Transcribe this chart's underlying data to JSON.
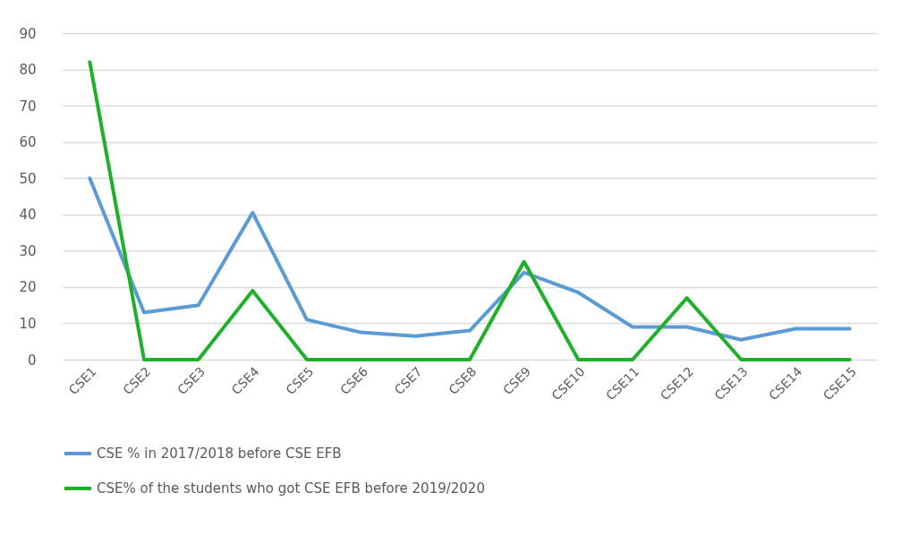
{
  "chart_data": {
    "type": "line",
    "categories": [
      "CSE1",
      "CSE2",
      "CSE3",
      "CSE4",
      "CSE5",
      "CSE6",
      "CSE7",
      "CSE8",
      "CSE9",
      "CSE10",
      "CSE11",
      "CSE12",
      "CSE13",
      "CSE14",
      "CSE15"
    ],
    "series": [
      {
        "name": "CSE % in 2017/2018 before CSE EFB",
        "color": "#5b9bd5",
        "values": [
          50,
          13,
          15,
          40.5,
          11,
          7.5,
          6.5,
          8,
          24,
          18.5,
          9,
          9,
          5.5,
          8.5,
          8.5
        ]
      },
      {
        "name": "CSE% of the students who got CSE EFB before 2019/2020",
        "color": "#1fb02a",
        "values": [
          82,
          0,
          0,
          19,
          0,
          0,
          0,
          0,
          27,
          0,
          0,
          17,
          0,
          0,
          0
        ]
      }
    ],
    "ylim": [
      0,
      90
    ],
    "yticks": [
      0,
      10,
      20,
      30,
      40,
      50,
      60,
      70,
      80,
      90
    ],
    "grid": "y",
    "legend": "bottom",
    "marker": "none",
    "line_style": "solid"
  }
}
